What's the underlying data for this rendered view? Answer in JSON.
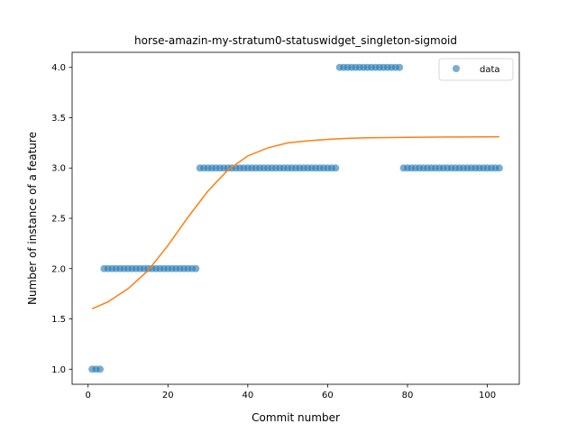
{
  "chart_data": {
    "type": "scatter",
    "title": "horse-amazin-my-stratum0-statuswidget_singleton-sigmoid",
    "xlabel": "Commit number",
    "ylabel": "Number of instance of a feature",
    "xlim": [
      -4,
      108
    ],
    "ylim": [
      0.85,
      4.15
    ],
    "xticks": [
      0,
      20,
      40,
      60,
      80,
      100
    ],
    "yticks": [
      1.0,
      1.5,
      2.0,
      2.5,
      3.0,
      3.5,
      4.0
    ],
    "xtick_labels": [
      "0",
      "20",
      "40",
      "60",
      "80",
      "100"
    ],
    "ytick_labels": [
      "1.0",
      "1.5",
      "2.0",
      "2.5",
      "3.0",
      "3.5",
      "4.0"
    ],
    "grid": false,
    "legend_position": "top-right",
    "colors": {
      "data": "#1f77b4",
      "fit": "#ff7f0e"
    },
    "series": [
      {
        "name": "data",
        "kind": "scatter",
        "segments": [
          {
            "x_from": 1,
            "x_to": 3,
            "y": 1
          },
          {
            "x_from": 4,
            "x_to": 27,
            "y": 2
          },
          {
            "x_from": 28,
            "x_to": 62,
            "y": 3
          },
          {
            "x_from": 63,
            "x_to": 78,
            "y": 4
          },
          {
            "x_from": 79,
            "x_to": 103,
            "y": 3
          }
        ]
      },
      {
        "kind": "line",
        "x": [
          1,
          5,
          10,
          15,
          20,
          25,
          30,
          35,
          40,
          45,
          50,
          55,
          60,
          65,
          70,
          80,
          90,
          103
        ],
        "y": [
          1.6,
          1.67,
          1.8,
          1.98,
          2.23,
          2.51,
          2.77,
          2.98,
          3.12,
          3.2,
          3.25,
          3.27,
          3.285,
          3.295,
          3.3,
          3.305,
          3.308,
          3.31
        ]
      }
    ]
  }
}
